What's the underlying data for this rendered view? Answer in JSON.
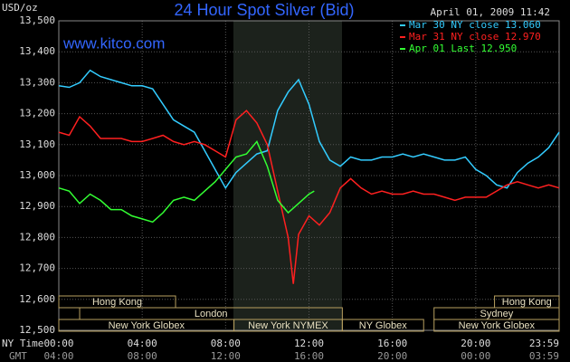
{
  "chart_data": {
    "type": "line",
    "title": "24 Hour Spot Silver (Bid)",
    "y_label": "USD/oz",
    "timestamp": "April 01, 2009 11:42",
    "watermark": "www.kitco.com",
    "x_row_label": "NY Time",
    "x2_row_label": "GMT",
    "xlim": [
      0,
      24
    ],
    "xticks": [
      {
        "value": 0,
        "label": "00:00"
      },
      {
        "value": 4,
        "label": "04:00"
      },
      {
        "value": 8,
        "label": "08:00"
      },
      {
        "value": 12,
        "label": "12:00"
      },
      {
        "value": 16,
        "label": "16:00"
      },
      {
        "value": 20,
        "label": "20:00"
      },
      {
        "value": 24,
        "label": "23:59"
      }
    ],
    "gmt_labels": [
      "04:00",
      "08:00",
      "12:00",
      "16:00",
      "20:00",
      "00:00",
      "03:59"
    ],
    "ylim": [
      12500,
      13500
    ],
    "yticks": [
      {
        "value": 12500,
        "label": "12,500"
      },
      {
        "value": 12600,
        "label": "12,600"
      },
      {
        "value": 12700,
        "label": "12,700"
      },
      {
        "value": 12800,
        "label": "12,800"
      },
      {
        "value": 12900,
        "label": "12,900"
      },
      {
        "value": 13000,
        "label": "13,000"
      },
      {
        "value": 13100,
        "label": "13,100"
      },
      {
        "value": 13200,
        "label": "13,200"
      },
      {
        "value": 13300,
        "label": "13,300"
      },
      {
        "value": 13400,
        "label": "13,400"
      },
      {
        "value": 13500,
        "label": "13,500"
      }
    ],
    "grid": true,
    "legend": "top-right",
    "series": [
      {
        "name": "Mar 30 NY close 13.060",
        "color": "#33ccff",
        "x": [
          0,
          0.5,
          1,
          1.5,
          2,
          2.5,
          3,
          3.5,
          4,
          4.5,
          5,
          5.5,
          6,
          6.5,
          7,
          7.5,
          8,
          8.5,
          9,
          9.5,
          10,
          10.5,
          11,
          11.5,
          12,
          12.5,
          13,
          13.5,
          14,
          14.5,
          15,
          15.5,
          16,
          16.5,
          17,
          17.5,
          18,
          18.5,
          19,
          19.5,
          20,
          20.5,
          21,
          21.5,
          22,
          22.5,
          23,
          23.5,
          24
        ],
        "values": [
          13290,
          13285,
          13300,
          13340,
          13320,
          13310,
          13300,
          13290,
          13290,
          13280,
          13230,
          13180,
          13160,
          13140,
          13080,
          13020,
          12960,
          13010,
          13040,
          13070,
          13080,
          13210,
          13270,
          13310,
          13230,
          13110,
          13050,
          13030,
          13060,
          13050,
          13050,
          13060,
          13060,
          13070,
          13060,
          13070,
          13060,
          13050,
          13050,
          13060,
          13020,
          13000,
          12970,
          12960,
          13010,
          13040,
          13060,
          13090,
          13140
        ]
      },
      {
        "name": "Mar 31 NY close 12.970",
        "color": "#ff2020",
        "x": [
          0,
          0.5,
          1,
          1.5,
          2,
          2.5,
          3,
          3.5,
          4,
          4.5,
          5,
          5.5,
          6,
          6.5,
          7,
          7.5,
          8,
          8.5,
          9,
          9.5,
          10,
          10.5,
          11,
          11.25,
          11.5,
          12,
          12.5,
          13,
          13.5,
          14,
          14.5,
          15,
          15.5,
          16,
          16.5,
          17,
          17.5,
          18,
          18.5,
          19,
          19.5,
          20,
          20.5,
          21,
          21.5,
          22,
          22.5,
          23,
          23.5,
          24
        ],
        "values": [
          13140,
          13130,
          13190,
          13160,
          13120,
          13120,
          13120,
          13110,
          13110,
          13120,
          13130,
          13110,
          13100,
          13110,
          13100,
          13080,
          13060,
          13180,
          13210,
          13170,
          13100,
          12950,
          12800,
          12650,
          12810,
          12870,
          12840,
          12880,
          12960,
          12990,
          12960,
          12940,
          12950,
          12940,
          12940,
          12950,
          12940,
          12940,
          12930,
          12920,
          12930,
          12930,
          12930,
          12950,
          12970,
          12980,
          12970,
          12960,
          12970,
          12960
        ]
      },
      {
        "name": "Apr 01 Last 12.950",
        "color": "#33ff33",
        "x": [
          0,
          0.5,
          1,
          1.5,
          2,
          2.5,
          3,
          3.5,
          4,
          4.5,
          5,
          5.5,
          6,
          6.5,
          7,
          7.5,
          8,
          8.5,
          9,
          9.5,
          10,
          10.5,
          11,
          11.5,
          12,
          12.25
        ],
        "values": [
          12960,
          12950,
          12910,
          12940,
          12920,
          12890,
          12890,
          12870,
          12860,
          12850,
          12880,
          12920,
          12930,
          12920,
          12950,
          12980,
          13020,
          13060,
          13070,
          13110,
          13030,
          12920,
          12880,
          12910,
          12940,
          12950
        ]
      }
    ],
    "sessions": [
      [
        {
          "label": "Hong Kong",
          "start": 0,
          "end": 5.6
        },
        {
          "label": "Hong Kong",
          "start": 20.9,
          "end": 24
        }
      ],
      [
        {
          "label": "London",
          "start": 1.0,
          "end": 13.6
        },
        {
          "label": "Sydney",
          "start": 18.0,
          "end": 24
        }
      ],
      [
        {
          "label": "New York Globex",
          "start": 0,
          "end": 8.4
        },
        {
          "label": "New York NYMEX",
          "start": 8.4,
          "end": 13.6
        },
        {
          "label": "NY Globex",
          "start": 13.6,
          "end": 17.5
        },
        {
          "label": "New York Globex",
          "start": 18.0,
          "end": 24
        }
      ]
    ]
  }
}
